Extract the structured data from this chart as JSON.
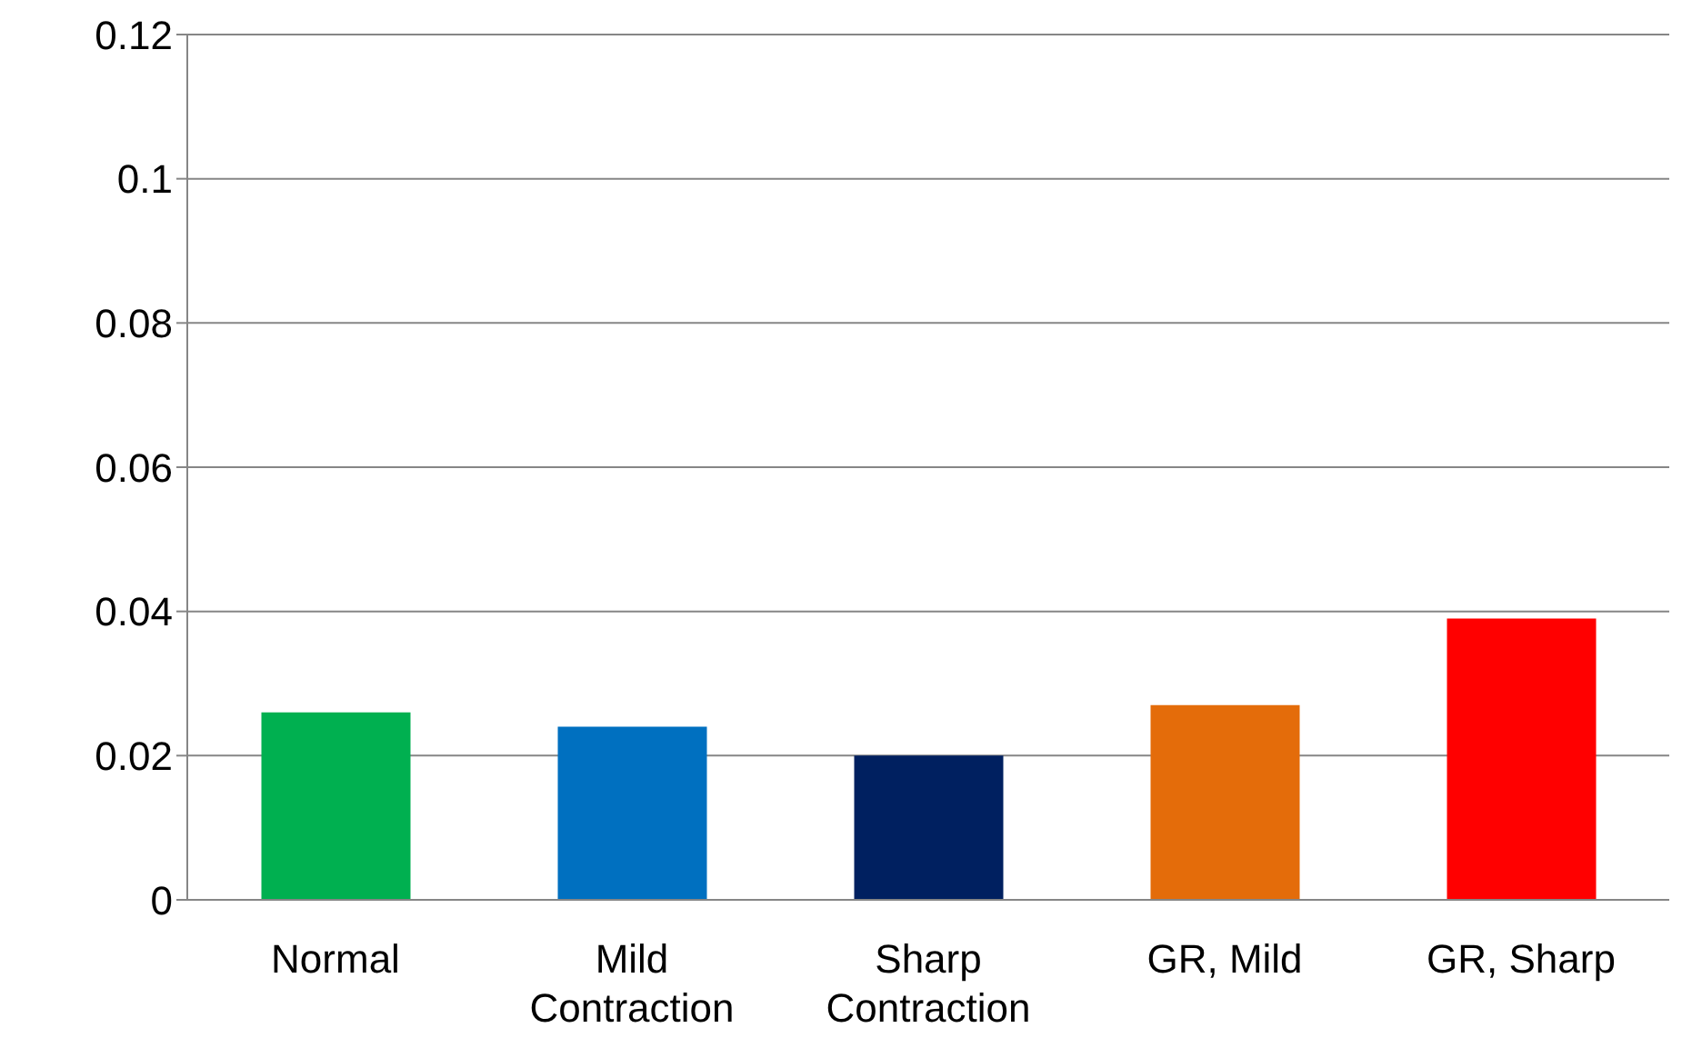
{
  "chart_data": {
    "type": "bar",
    "categories": [
      "Normal",
      "Mild Contraction",
      "Sharp Contraction",
      "GR, Mild",
      "GR, Sharp"
    ],
    "values": [
      0.026,
      0.024,
      0.02,
      0.027,
      0.039
    ],
    "colors": [
      "#00b050",
      "#0070c0",
      "#002060",
      "#e46c0a",
      "#ff0000"
    ],
    "ylim": [
      0,
      0.12
    ],
    "yticks": [
      0,
      0.02,
      0.04,
      0.06,
      0.08,
      0.1,
      0.12
    ],
    "grid": "y"
  }
}
